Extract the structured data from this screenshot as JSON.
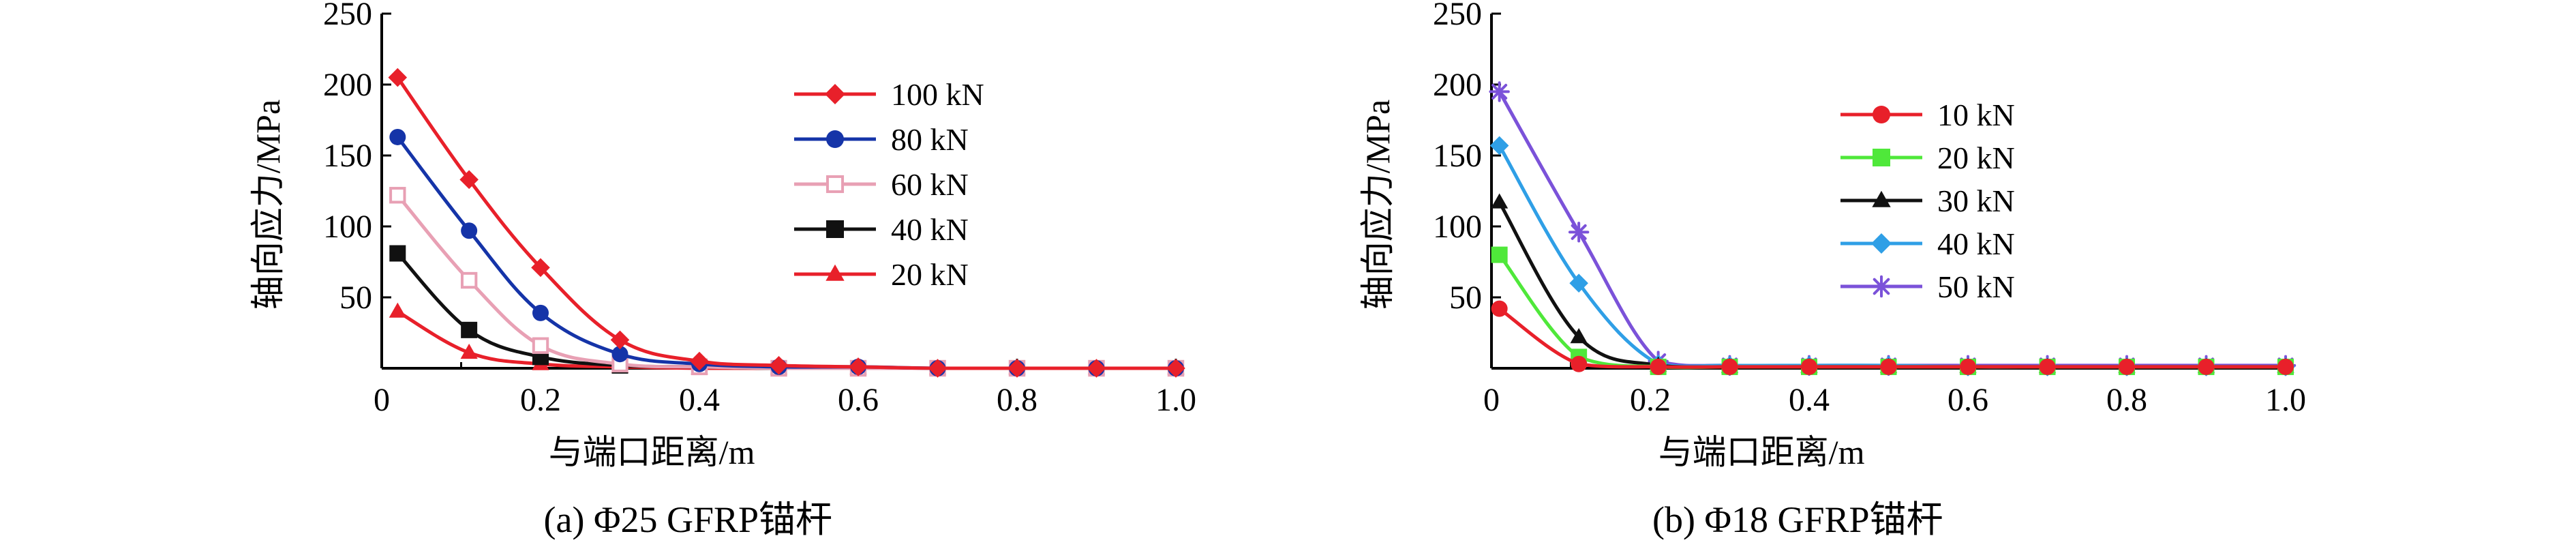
{
  "chart_data": [
    {
      "type": "line",
      "caption": "(a) Φ25 GFRP锚杆",
      "xlabel": "与端口距离/m",
      "ylabel": "轴向应力/MPa",
      "xlim": [
        0,
        1.0
      ],
      "ylim": [
        0,
        250
      ],
      "xticks": [
        "0",
        "0.2",
        "0.4",
        "0.6",
        "0.8",
        "1.0"
      ],
      "yticks": [
        "50",
        "100",
        "150",
        "200",
        "250"
      ],
      "grid": false,
      "legend_position": "top-right",
      "x": [
        0.02,
        0.11,
        0.2,
        0.3,
        0.4,
        0.5,
        0.6,
        0.7,
        0.8,
        0.9,
        1.0
      ],
      "series": [
        {
          "name": "100 kN",
          "color": "#e8202a",
          "marker": "diamond",
          "values": [
            205,
            133,
            71,
            20,
            5,
            2,
            1,
            0,
            0,
            0,
            0
          ]
        },
        {
          "name": "80 kN",
          "color": "#1534a8",
          "marker": "circle",
          "values": [
            163,
            97,
            39,
            10,
            3,
            1,
            1,
            0,
            0,
            0,
            0
          ]
        },
        {
          "name": "60 kN",
          "color": "#e8a0b4",
          "marker": "square-open",
          "values": [
            122,
            62,
            16,
            3,
            1,
            0,
            0,
            0,
            0,
            0,
            0
          ]
        },
        {
          "name": "40 kN",
          "color": "#111111",
          "marker": "square",
          "values": [
            81,
            27,
            8,
            2,
            1,
            0,
            0,
            0,
            0,
            0,
            0
          ]
        },
        {
          "name": "20 kN",
          "color": "#e8202a",
          "marker": "triangle",
          "values": [
            40,
            11,
            3,
            1,
            0,
            0,
            0,
            0,
            0,
            0,
            0
          ]
        }
      ]
    },
    {
      "type": "line",
      "caption": "(b) Φ18 GFRP锚杆",
      "xlabel": "与端口距离/m",
      "ylabel": "轴向应力/MPa",
      "xlim": [
        0,
        1.0
      ],
      "ylim": [
        0,
        250
      ],
      "xticks": [
        "0",
        "0.2",
        "0.4",
        "0.6",
        "0.8",
        "1.0"
      ],
      "yticks": [
        "50",
        "100",
        "150",
        "200",
        "250"
      ],
      "grid": false,
      "legend_position": "top-center",
      "x": [
        0.01,
        0.11,
        0.21,
        0.3,
        0.4,
        0.5,
        0.6,
        0.7,
        0.8,
        0.9,
        1.0
      ],
      "series": [
        {
          "name": "10 kN",
          "color": "#e8202a",
          "marker": "circle",
          "values": [
            42,
            3,
            1,
            1,
            1,
            1,
            1,
            1,
            1,
            1,
            1
          ]
        },
        {
          "name": "20 kN",
          "color": "#4fe83a",
          "marker": "square",
          "values": [
            80,
            8,
            1,
            1,
            1,
            1,
            1,
            1,
            1,
            1,
            1
          ]
        },
        {
          "name": "30 kN",
          "color": "#111111",
          "marker": "triangle",
          "values": [
            117,
            22,
            2,
            1,
            1,
            1,
            1,
            1,
            1,
            1,
            1
          ]
        },
        {
          "name": "40 kN",
          "color": "#2f9fe6",
          "marker": "diamond",
          "values": [
            157,
            60,
            3,
            2,
            2,
            2,
            1,
            1,
            1,
            1,
            1
          ]
        },
        {
          "name": "50 kN",
          "color": "#7b52d9",
          "marker": "star",
          "values": [
            195,
            96,
            5,
            2,
            2,
            2,
            2,
            2,
            2,
            2,
            2
          ]
        }
      ]
    }
  ]
}
